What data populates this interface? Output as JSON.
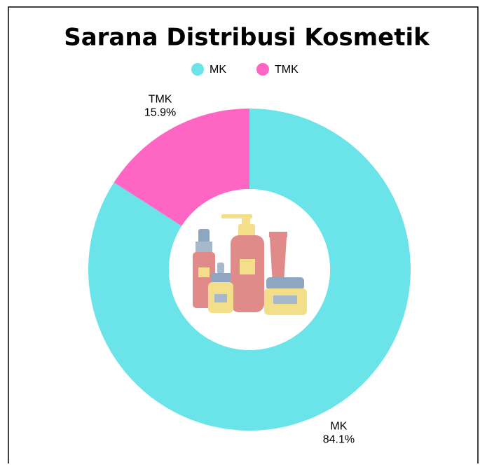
{
  "chart_data": {
    "type": "pie",
    "donut": true,
    "title": "Sarana Distribusi Kosmetik",
    "categories": [
      "MK",
      "TMK"
    ],
    "values": [
      84.1,
      15.9
    ],
    "value_labels": [
      "84.1%",
      "15.9%"
    ],
    "colors": [
      "#6ae4e8",
      "#ff66c4"
    ],
    "legend": "top"
  }
}
